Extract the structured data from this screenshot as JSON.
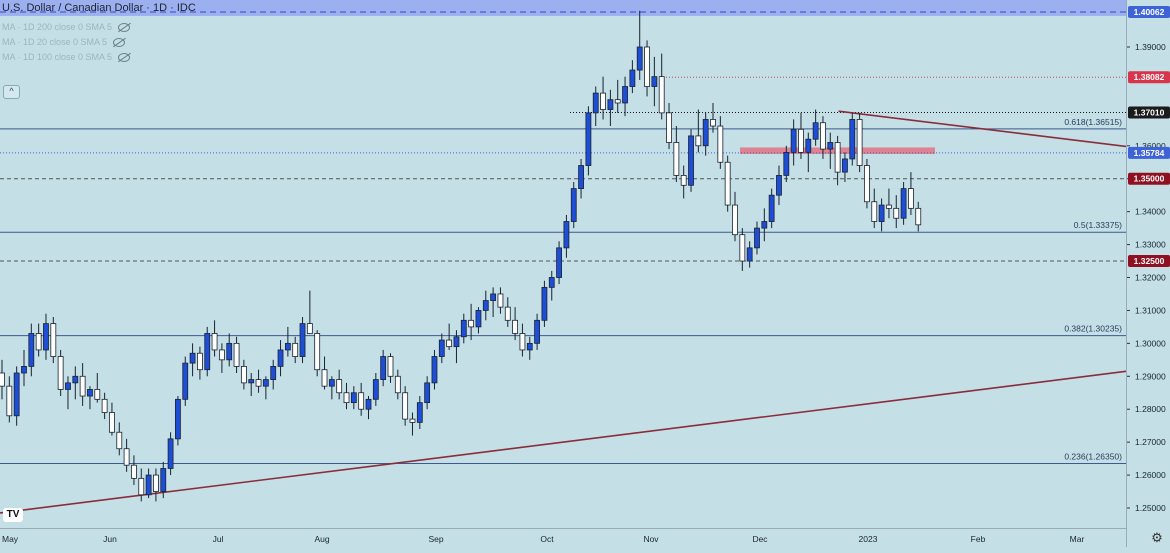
{
  "header": {
    "title": "U.S. Dollar / Canadian Dollar · 1D · IDC",
    "indicators": [
      "MA · 1D 200 close 0 SMA 5",
      "MA · 1D 20 close 0 SMA 5",
      "MA · 1D 100 close 0 SMA 5"
    ],
    "collapse_label": "^"
  },
  "footer": {
    "logo_text": "TV",
    "settings_icon": "gear-icon"
  },
  "colors": {
    "background": "#c4dfe6",
    "up_candle": "#1f4ed6",
    "down_candle": "#ffffff",
    "trendline": "#8a2c3a",
    "zone": "#e07a8a",
    "top_zone": "#8f9ff0",
    "level_line": "#3c5a8e"
  },
  "chart_data": {
    "type": "candlestick",
    "title": "U.S. Dollar / Canadian Dollar · 1D · IDC",
    "xlabel": "",
    "ylabel": "",
    "ylim": [
      1.245,
      1.405
    ],
    "y_ticks": [
      1.25,
      1.26,
      1.27,
      1.28,
      1.29,
      1.3,
      1.31,
      1.32,
      1.33,
      1.34,
      1.35,
      1.36,
      1.39
    ],
    "y_tick_labels": [
      "1.25000",
      "1.26000",
      "1.27000",
      "1.28000",
      "1.29000",
      "1.30000",
      "1.31000",
      "1.32000",
      "1.33000",
      "1.34000",
      "1.35000",
      "1.36000",
      "1.39000"
    ],
    "x_ticks": [
      "May",
      "Jun",
      "Jul",
      "Aug",
      "Sep",
      "Oct",
      "Nov",
      "Dec",
      "2023",
      "Feb",
      "Mar"
    ],
    "price_labels": [
      {
        "label": "1.40062",
        "value": 1.40062,
        "color": "#3d63d6"
      },
      {
        "label": "1.38082",
        "value": 1.38082,
        "color": "#d8344c"
      },
      {
        "label": "1.37010",
        "value": 1.3701,
        "color": "#1b1b1b"
      },
      {
        "label": "1.35784",
        "value": 1.35784,
        "color": "#3d63d6"
      },
      {
        "label": "1.35000",
        "value": 1.35,
        "color": "#8f1020"
      },
      {
        "label": "1.32500",
        "value": 1.325,
        "color": "#8f1020"
      }
    ],
    "fib_levels": [
      {
        "label": "0.618(1.36515)",
        "value": 1.36515
      },
      {
        "label": "0.5(1.33375)",
        "value": 1.33375
      },
      {
        "label": "0.382(1.30235)",
        "value": 1.30235
      },
      {
        "label": "0.236(1.26350)",
        "value": 1.2635
      }
    ],
    "dashed_levels": [
      1.35,
      1.325
    ],
    "dotted_levels": [
      1.3701,
      1.38082
    ],
    "resistance_zone": [
      1.3575,
      1.3595
    ],
    "trendlines": [
      {
        "name": "support",
        "points": [
          [
            "May 2",
            1.2485
          ],
          [
            "Mar 31",
            1.2915
          ]
        ]
      },
      {
        "name": "resistance",
        "points": [
          [
            "Dec 16",
            1.3705
          ],
          [
            "Mar 31",
            1.3598
          ]
        ]
      }
    ],
    "candles": [
      [
        1.291,
        1.295,
        1.283,
        1.287
      ],
      [
        1.287,
        1.29,
        1.276,
        1.278
      ],
      [
        1.278,
        1.293,
        1.275,
        1.291
      ],
      [
        1.291,
        1.298,
        1.287,
        1.293
      ],
      [
        1.293,
        1.306,
        1.29,
        1.303
      ],
      [
        1.303,
        1.306,
        1.296,
        1.298
      ],
      [
        1.298,
        1.309,
        1.295,
        1.306
      ],
      [
        1.306,
        1.308,
        1.294,
        1.296
      ],
      [
        1.296,
        1.298,
        1.284,
        1.286
      ],
      [
        1.286,
        1.29,
        1.28,
        1.288
      ],
      [
        1.288,
        1.293,
        1.283,
        1.29
      ],
      [
        1.29,
        1.294,
        1.281,
        1.284
      ],
      [
        1.284,
        1.287,
        1.28,
        1.286
      ],
      [
        1.286,
        1.291,
        1.282,
        1.283
      ],
      [
        1.283,
        1.285,
        1.277,
        1.279
      ],
      [
        1.279,
        1.282,
        1.272,
        1.273
      ],
      [
        1.273,
        1.276,
        1.266,
        1.268
      ],
      [
        1.268,
        1.271,
        1.261,
        1.263
      ],
      [
        1.263,
        1.266,
        1.257,
        1.259
      ],
      [
        1.259,
        1.262,
        1.252,
        1.254
      ],
      [
        1.254,
        1.262,
        1.253,
        1.26
      ],
      [
        1.26,
        1.262,
        1.252,
        1.255
      ],
      [
        1.255,
        1.264,
        1.253,
        1.262
      ],
      [
        1.262,
        1.273,
        1.26,
        1.271
      ],
      [
        1.271,
        1.284,
        1.269,
        1.283
      ],
      [
        1.283,
        1.296,
        1.281,
        1.294
      ],
      [
        1.294,
        1.3,
        1.29,
        1.297
      ],
      [
        1.297,
        1.299,
        1.289,
        1.292
      ],
      [
        1.292,
        1.305,
        1.29,
        1.303
      ],
      [
        1.303,
        1.307,
        1.296,
        1.298
      ],
      [
        1.298,
        1.3,
        1.291,
        1.295
      ],
      [
        1.295,
        1.303,
        1.293,
        1.3
      ],
      [
        1.3,
        1.302,
        1.291,
        1.293
      ],
      [
        1.293,
        1.295,
        1.286,
        1.288
      ],
      [
        1.288,
        1.291,
        1.284,
        1.289
      ],
      [
        1.289,
        1.292,
        1.285,
        1.287
      ],
      [
        1.287,
        1.29,
        1.283,
        1.289
      ],
      [
        1.289,
        1.295,
        1.286,
        1.293
      ],
      [
        1.293,
        1.301,
        1.29,
        1.298
      ],
      [
        1.298,
        1.305,
        1.296,
        1.3
      ],
      [
        1.3,
        1.302,
        1.294,
        1.296
      ],
      [
        1.296,
        1.308,
        1.294,
        1.306
      ],
      [
        1.306,
        1.316,
        1.303,
        1.303
      ],
      [
        1.303,
        1.304,
        1.29,
        1.292
      ],
      [
        1.292,
        1.296,
        1.286,
        1.287
      ],
      [
        1.287,
        1.29,
        1.283,
        1.289
      ],
      [
        1.289,
        1.292,
        1.283,
        1.285
      ],
      [
        1.285,
        1.288,
        1.28,
        1.282
      ],
      [
        1.282,
        1.287,
        1.28,
        1.285
      ],
      [
        1.285,
        1.288,
        1.278,
        1.28
      ],
      [
        1.28,
        1.284,
        1.277,
        1.283
      ],
      [
        1.283,
        1.291,
        1.281,
        1.289
      ],
      [
        1.289,
        1.298,
        1.287,
        1.296
      ],
      [
        1.296,
        1.297,
        1.288,
        1.29
      ],
      [
        1.29,
        1.292,
        1.283,
        1.285
      ],
      [
        1.285,
        1.287,
        1.275,
        1.277
      ],
      [
        1.277,
        1.279,
        1.272,
        1.276
      ],
      [
        1.276,
        1.284,
        1.274,
        1.282
      ],
      [
        1.282,
        1.29,
        1.28,
        1.288
      ],
      [
        1.288,
        1.298,
        1.286,
        1.296
      ],
      [
        1.296,
        1.303,
        1.294,
        1.301
      ],
      [
        1.301,
        1.306,
        1.298,
        1.299
      ],
      [
        1.299,
        1.304,
        1.294,
        1.302
      ],
      [
        1.302,
        1.309,
        1.3,
        1.307
      ],
      [
        1.307,
        1.312,
        1.301,
        1.305
      ],
      [
        1.305,
        1.311,
        1.303,
        1.31
      ],
      [
        1.31,
        1.316,
        1.307,
        1.313
      ],
      [
        1.313,
        1.317,
        1.308,
        1.315
      ],
      [
        1.315,
        1.317,
        1.309,
        1.311
      ],
      [
        1.311,
        1.314,
        1.305,
        1.307
      ],
      [
        1.307,
        1.311,
        1.301,
        1.303
      ],
      [
        1.303,
        1.306,
        1.296,
        1.298
      ],
      [
        1.298,
        1.302,
        1.295,
        1.3
      ],
      [
        1.3,
        1.309,
        1.298,
        1.307
      ],
      [
        1.307,
        1.319,
        1.305,
        1.317
      ],
      [
        1.317,
        1.322,
        1.313,
        1.32
      ],
      [
        1.32,
        1.331,
        1.318,
        1.329
      ],
      [
        1.329,
        1.339,
        1.326,
        1.337
      ],
      [
        1.337,
        1.349,
        1.335,
        1.347
      ],
      [
        1.347,
        1.356,
        1.344,
        1.354
      ],
      [
        1.354,
        1.372,
        1.351,
        1.37
      ],
      [
        1.37,
        1.378,
        1.366,
        1.376
      ],
      [
        1.376,
        1.381,
        1.368,
        1.371
      ],
      [
        1.371,
        1.377,
        1.366,
        1.374
      ],
      [
        1.374,
        1.38,
        1.37,
        1.373
      ],
      [
        1.373,
        1.381,
        1.369,
        1.378
      ],
      [
        1.378,
        1.386,
        1.376,
        1.383
      ],
      [
        1.383,
        1.401,
        1.38,
        1.39
      ],
      [
        1.39,
        1.392,
        1.375,
        1.378
      ],
      [
        1.378,
        1.387,
        1.372,
        1.381
      ],
      [
        1.381,
        1.388,
        1.368,
        1.37
      ],
      [
        1.37,
        1.373,
        1.359,
        1.361
      ],
      [
        1.361,
        1.366,
        1.349,
        1.351
      ],
      [
        1.351,
        1.354,
        1.344,
        1.348
      ],
      [
        1.348,
        1.365,
        1.346,
        1.363
      ],
      [
        1.363,
        1.371,
        1.358,
        1.36
      ],
      [
        1.36,
        1.37,
        1.357,
        1.368
      ],
      [
        1.368,
        1.373,
        1.364,
        1.366
      ],
      [
        1.366,
        1.369,
        1.353,
        1.355
      ],
      [
        1.355,
        1.357,
        1.34,
        1.342
      ],
      [
        1.342,
        1.346,
        1.331,
        1.333
      ],
      [
        1.333,
        1.335,
        1.322,
        1.325
      ],
      [
        1.325,
        1.331,
        1.323,
        1.329
      ],
      [
        1.329,
        1.337,
        1.327,
        1.335
      ],
      [
        1.335,
        1.341,
        1.331,
        1.337
      ],
      [
        1.337,
        1.347,
        1.335,
        1.345
      ],
      [
        1.345,
        1.354,
        1.342,
        1.351
      ],
      [
        1.351,
        1.36,
        1.349,
        1.358
      ],
      [
        1.358,
        1.368,
        1.354,
        1.365
      ],
      [
        1.365,
        1.37,
        1.356,
        1.358
      ],
      [
        1.358,
        1.364,
        1.352,
        1.362
      ],
      [
        1.362,
        1.371,
        1.36,
        1.367
      ],
      [
        1.367,
        1.369,
        1.356,
        1.359
      ],
      [
        1.359,
        1.364,
        1.353,
        1.361
      ],
      [
        1.361,
        1.363,
        1.348,
        1.352
      ],
      [
        1.352,
        1.358,
        1.349,
        1.356
      ],
      [
        1.356,
        1.37,
        1.354,
        1.368
      ],
      [
        1.368,
        1.37,
        1.352,
        1.354
      ],
      [
        1.354,
        1.356,
        1.341,
        1.343
      ],
      [
        1.343,
        1.347,
        1.335,
        1.337
      ],
      [
        1.337,
        1.344,
        1.334,
        1.342
      ],
      [
        1.342,
        1.347,
        1.338,
        1.341
      ],
      [
        1.341,
        1.345,
        1.335,
        1.338
      ],
      [
        1.338,
        1.349,
        1.336,
        1.347
      ],
      [
        1.347,
        1.352,
        1.339,
        1.341
      ],
      [
        1.341,
        1.343,
        1.334,
        1.336
      ]
    ]
  }
}
